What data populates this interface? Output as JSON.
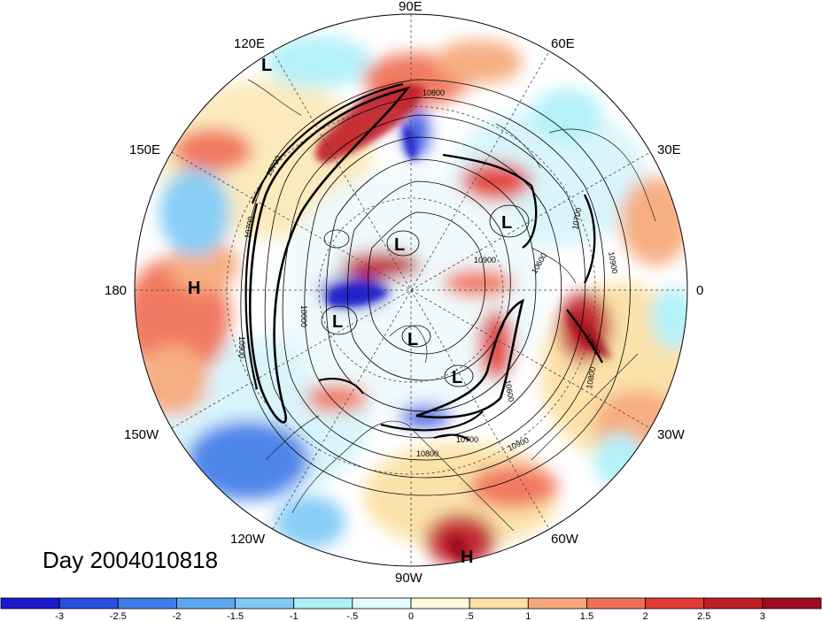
{
  "map": {
    "projection": "north-polar-stereographic",
    "longitude_labels": [
      "90E",
      "60E",
      "30E",
      "0",
      "30W",
      "60W",
      "90W",
      "120W",
      "150W",
      "180",
      "150E",
      "120E"
    ],
    "pressure_centers": [
      {
        "type": "L"
      },
      {
        "type": "L"
      },
      {
        "type": "L"
      },
      {
        "type": "L"
      },
      {
        "type": "L"
      },
      {
        "type": "L"
      },
      {
        "type": "H"
      },
      {
        "type": "H"
      }
    ],
    "contour_labels": [
      "10800",
      "10900",
      "10700",
      "10600",
      "10900",
      "10800",
      "10700",
      "10000",
      "10900",
      "10700",
      "10600",
      "10800",
      "10700",
      "10800",
      "10900"
    ],
    "anomaly_colors": {
      "strong_negative": "#1a1acc",
      "negative": "#4a90e8",
      "weak_negative": "#aef0f8",
      "weak_positive": "#fbe9b8",
      "positive": "#f08050",
      "strong_positive": "#a8101e"
    }
  },
  "day_label": "Day 2004010818",
  "colorbar": {
    "ticks": [
      "-3",
      "-2.5",
      "-2",
      "-1.5",
      "-1",
      "-.5",
      "0",
      ".5",
      "1",
      "1.5",
      "2",
      "2.5",
      "3"
    ],
    "colors": [
      "#1a1acc",
      "#2a4ee0",
      "#3f7de8",
      "#5ba8ef",
      "#7fcaf5",
      "#aef0f8",
      "#e2fbfd",
      "#fefadc",
      "#fbe0a2",
      "#f6a878",
      "#f07055",
      "#e23a36",
      "#c01e25",
      "#9e0c1f"
    ]
  }
}
